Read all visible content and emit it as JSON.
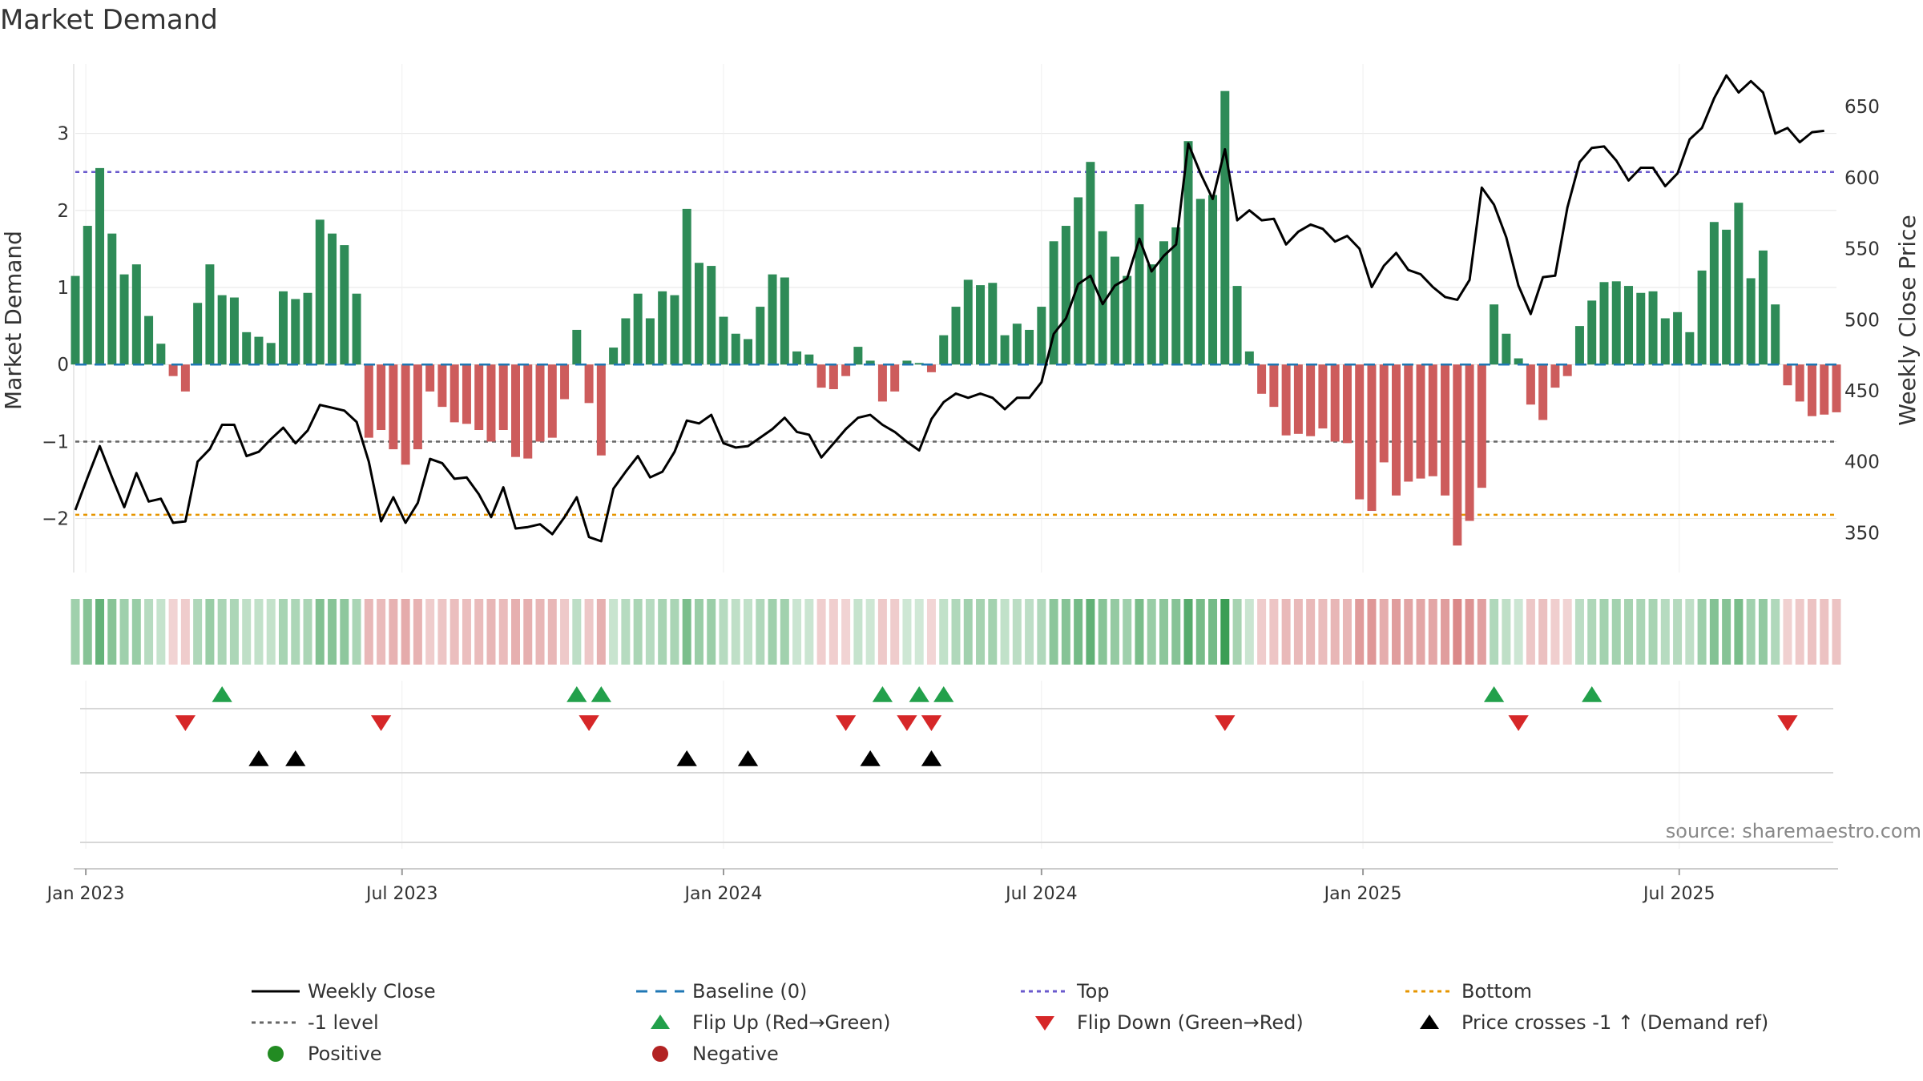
{
  "chart_data": {
    "type": "bar+line",
    "title": "Market Demand",
    "ylabel_left": "Market Demand",
    "ylabel_right": "Weekly Close Price",
    "source": "source: sharemaestro.com",
    "ylim_left": [
      -2.7,
      3.9
    ],
    "ylim_right": [
      322,
      680
    ],
    "yticks_left": [
      -2,
      -1,
      0,
      1,
      2,
      3
    ],
    "yticks_left_labels": [
      "−2",
      "−1",
      "0",
      "1",
      "2",
      "3"
    ],
    "yticks_right": [
      350,
      400,
      450,
      500,
      550,
      600,
      650
    ],
    "ref_levels": {
      "top": 2.5,
      "minus_one": -1,
      "bottom": -1.95,
      "baseline": 0
    },
    "x_axis": {
      "start": "2022-12-26",
      "end": "2025-09-29",
      "ticks": [
        {
          "label": "Jan 2023",
          "date": "2023-01-01"
        },
        {
          "label": "Jul 2023",
          "date": "2023-07-01"
        },
        {
          "label": "Jan 2024",
          "date": "2024-01-01"
        },
        {
          "label": "Jul 2024",
          "date": "2024-07-01"
        },
        {
          "label": "Jan 2025",
          "date": "2025-01-01"
        },
        {
          "label": "Jul 2025",
          "date": "2025-07-01"
        }
      ]
    },
    "series": [
      {
        "name": "Market Demand (weekly bars)",
        "start_date": "2022-12-26",
        "step_days": 7,
        "values": [
          1.15,
          1.8,
          2.55,
          1.7,
          1.17,
          1.3,
          0.63,
          0.27,
          -0.15,
          -0.35,
          0.8,
          1.3,
          0.9,
          0.87,
          0.42,
          0.36,
          0.28,
          0.95,
          0.85,
          0.93,
          1.88,
          1.7,
          1.55,
          0.92,
          -0.95,
          -0.85,
          -1.1,
          -1.3,
          -1.1,
          -0.35,
          -0.55,
          -0.75,
          -0.77,
          -0.85,
          -1.0,
          -0.85,
          -1.2,
          -1.22,
          -1.0,
          -0.95,
          -0.45,
          0.45,
          -0.5,
          -1.18,
          0.22,
          0.6,
          0.92,
          0.6,
          0.95,
          0.9,
          2.02,
          1.32,
          1.28,
          0.62,
          0.4,
          0.33,
          0.75,
          1.17,
          1.13,
          0.17,
          0.13,
          -0.3,
          -0.32,
          -0.15,
          0.23,
          0.05,
          -0.48,
          -0.35,
          0.05,
          0.02,
          -0.1,
          0.38,
          0.75,
          1.1,
          1.03,
          1.06,
          0.38,
          0.53,
          0.45,
          0.75,
          1.6,
          1.8,
          2.17,
          2.63,
          1.73,
          1.4,
          1.15,
          2.08,
          1.3,
          1.6,
          1.78,
          2.9,
          2.15,
          2.2,
          3.55,
          1.02,
          0.17,
          -0.38,
          -0.55,
          -0.92,
          -0.9,
          -0.93,
          -0.83,
          -1.0,
          -1.02,
          -1.75,
          -1.9,
          -1.27,
          -1.7,
          -1.52,
          -1.48,
          -1.45,
          -1.7,
          -2.35,
          -2.03,
          -1.6,
          0.78,
          0.4,
          0.08,
          -0.52,
          -0.72,
          -0.3,
          -0.15,
          0.5,
          0.83,
          1.07,
          1.08,
          1.02,
          0.93,
          0.95,
          0.6,
          0.68,
          0.42,
          1.22,
          1.85,
          1.75,
          2.1,
          1.12,
          1.48,
          0.78,
          -0.27,
          -0.48,
          -0.67,
          -0.65,
          -0.62
        ]
      },
      {
        "name": "Weekly Close",
        "axis": "right",
        "start_date": "2022-12-26",
        "step_days": 7,
        "values": [
          366,
          389,
          411,
          389,
          368,
          392,
          372,
          374,
          357,
          358,
          400,
          409,
          426,
          426,
          404,
          407,
          416,
          424,
          413,
          422,
          440,
          438,
          436,
          428,
          400,
          358,
          375,
          357,
          371,
          402,
          399,
          388,
          389,
          377,
          361,
          382,
          353,
          354,
          356,
          349,
          361,
          375,
          347,
          344,
          381,
          393,
          404,
          389,
          393,
          407,
          429,
          427,
          433,
          413,
          410,
          411,
          417,
          423,
          431,
          421,
          419,
          403,
          413,
          423,
          431,
          433,
          426,
          421,
          414,
          408,
          430,
          442,
          448,
          445,
          448,
          445,
          437,
          445,
          445,
          456,
          490,
          501,
          525,
          531,
          511,
          524,
          529,
          557,
          534,
          545,
          553,
          624,
          603,
          585,
          620,
          570,
          577,
          570,
          571,
          553,
          562,
          567,
          564,
          555,
          559,
          550,
          523,
          538,
          547,
          535,
          532,
          523,
          516,
          514,
          528,
          593,
          581,
          558,
          524,
          504,
          530,
          531,
          579,
          611,
          621,
          622,
          612,
          598,
          607,
          607,
          594,
          603,
          627,
          635,
          656,
          672,
          660,
          668,
          660,
          631,
          635,
          625,
          632,
          633
        ]
      }
    ],
    "flips_up": [
      "2023-03-20",
      "2023-10-09",
      "2023-10-23",
      "2024-04-01",
      "2024-04-22",
      "2024-05-06",
      "2025-03-17",
      "2025-05-12"
    ],
    "flips_down": [
      "2023-02-27",
      "2023-06-19",
      "2023-10-16",
      "2024-03-11",
      "2024-04-15",
      "2024-04-29",
      "2024-10-14",
      "2025-03-31",
      "2025-09-01"
    ],
    "price_crosses_minus1_up": [
      "2023-04-10",
      "2023-05-01",
      "2023-12-11",
      "2024-01-15",
      "2024-03-25",
      "2024-04-29"
    ],
    "legend": [
      {
        "label": "Weekly Close",
        "kind": "line",
        "color": "#000000"
      },
      {
        "label": "Baseline (0)",
        "kind": "dash",
        "color": "#1f77b4"
      },
      {
        "label": "Top",
        "kind": "dots",
        "color": "#6a5acd"
      },
      {
        "label": "Bottom",
        "kind": "dots",
        "color": "#e69500"
      },
      {
        "label": "-1 level",
        "kind": "dots",
        "color": "#666666"
      },
      {
        "label": "Flip Up (Red→Green)",
        "kind": "tri-up",
        "color": "#22a04b"
      },
      {
        "label": "Flip Down (Green→Red)",
        "kind": "tri-down",
        "color": "#d62728"
      },
      {
        "label": "Price crosses -1 ↑ (Demand ref)",
        "kind": "tri-up",
        "color": "#000000"
      },
      {
        "label": "Positive",
        "kind": "dot",
        "color": "#228b22"
      },
      {
        "label": "Negative",
        "kind": "dot",
        "color": "#b22222"
      }
    ],
    "colors": {
      "positive_bar": "#2e8b57",
      "negative_bar": "#cd5c5c",
      "price_line": "#000000",
      "baseline": "#1f77b4",
      "top": "#6a5acd",
      "minus_one": "#666666",
      "bottom": "#e69500",
      "flip_up": "#22a04b",
      "flip_down": "#d62728",
      "cross": "#000000",
      "grid": "#e6e6e6",
      "axis_text": "#333333",
      "source_text": "#888888",
      "strip_pos_rgb": [
        42,
        150,
        70
      ],
      "strip_neg_rgb": [
        200,
        80,
        80
      ]
    }
  }
}
